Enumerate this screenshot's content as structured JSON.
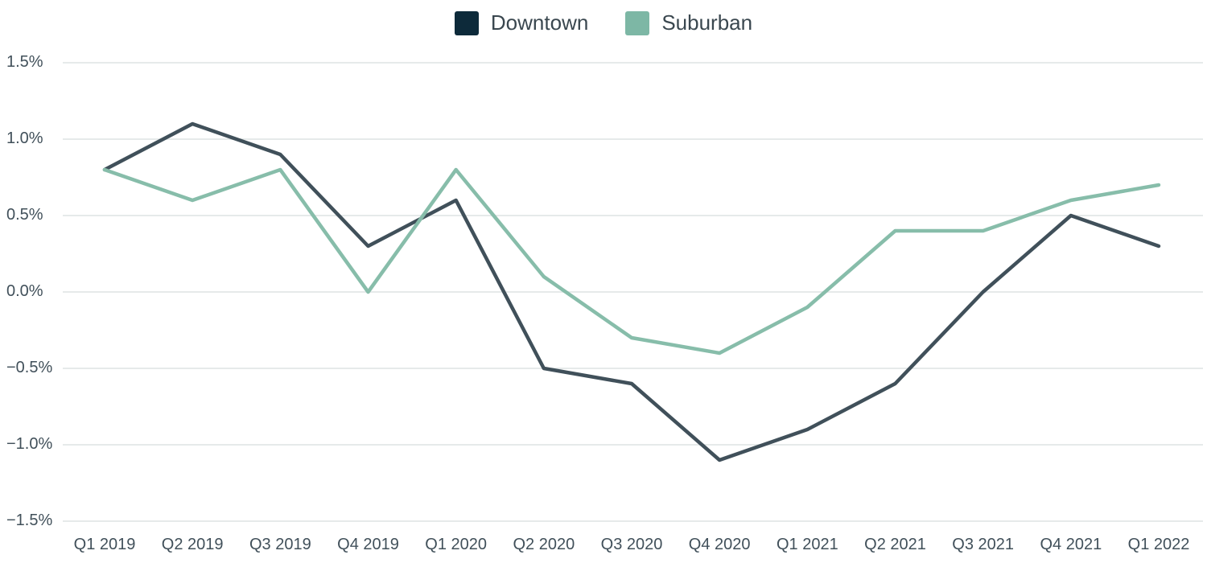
{
  "chart_data": {
    "type": "line",
    "categories": [
      "Q1 2019",
      "Q2 2019",
      "Q3 2019",
      "Q4 2019",
      "Q1 2020",
      "Q2 2020",
      "Q3 2020",
      "Q4 2020",
      "Q1 2021",
      "Q2 2021",
      "Q3 2021",
      "Q4 2021",
      "Q1 2022"
    ],
    "series": [
      {
        "name": "Downtown",
        "swatch_color": "#0d2a3a",
        "line_color": "#40505a",
        "values": [
          0.8,
          1.1,
          0.9,
          0.3,
          0.6,
          -0.5,
          -0.6,
          -1.1,
          -0.9,
          -0.6,
          0.0,
          0.5,
          0.3
        ]
      },
      {
        "name": "Suburban",
        "swatch_color": "#7db7a5",
        "line_color": "#87bdaa",
        "values": [
          0.8,
          0.6,
          0.8,
          0.0,
          0.8,
          0.1,
          -0.3,
          -0.4,
          -0.1,
          0.4,
          0.4,
          0.6,
          0.7
        ]
      }
    ],
    "ytick_labels": [
      "1.5%",
      "1.0%",
      "0.5%",
      "0.0%",
      "−0.5%",
      "−1.0%",
      "−1.5%"
    ],
    "ytick_values": [
      1.5,
      1.0,
      0.5,
      0.0,
      -0.5,
      -1.0,
      -1.5
    ],
    "ylim": [
      -1.5,
      1.5
    ],
    "value_unit": "%",
    "grid": "horizontal",
    "gridline_color": "#e6eaea",
    "background_color": "#ffffff",
    "legend_position": "top-center",
    "line_width": 4.5
  }
}
